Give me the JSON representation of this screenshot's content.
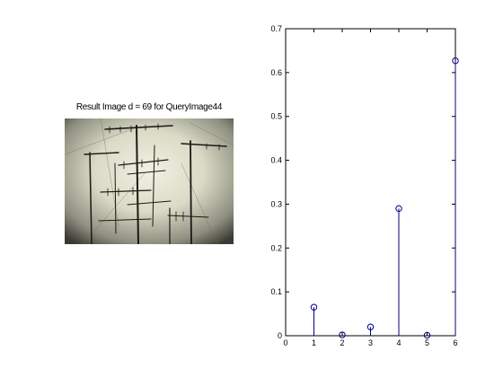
{
  "figure": {
    "image_panel": {
      "title": "Result Image d = 69 for QueryImage44",
      "image_description": "grayscale photo of rooftop TV antennas against a pale sky with dark vignette"
    }
  },
  "colors": {
    "stem": "#00007f",
    "axes": "#000000",
    "background": "#ffffff"
  },
  "chart_data": {
    "type": "scatter",
    "style": "stem",
    "title": "",
    "xlabel": "",
    "ylabel": "",
    "xlim": [
      0,
      6
    ],
    "ylim": [
      0,
      0.7
    ],
    "xticks": [
      "0",
      "1",
      "2",
      "3",
      "4",
      "5",
      "6"
    ],
    "yticks": [
      "0",
      "0.1",
      "0.2",
      "0.3",
      "0.4",
      "0.5",
      "0.6",
      "0.7"
    ],
    "grid": false,
    "legend": "none",
    "x": [
      1,
      2,
      3,
      4,
      5,
      6
    ],
    "values": [
      0.065,
      0.002,
      0.02,
      0.29,
      0.001,
      0.627
    ]
  }
}
